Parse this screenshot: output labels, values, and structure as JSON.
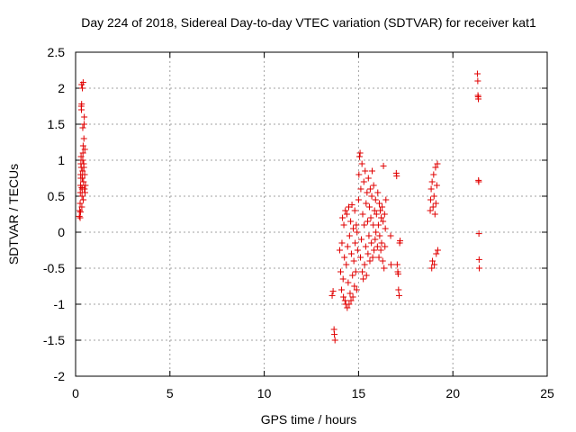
{
  "chart_data": {
    "type": "scatter",
    "title": "Day 224 of 2018, Sidereal Day-to-day VTEC variation (SDTVAR) for receiver kat1",
    "xlabel": "GPS time / hours",
    "ylabel": "SDTVAR / TECUs",
    "xlim": [
      0,
      25
    ],
    "ylim": [
      -2,
      2.5
    ],
    "xticks": [
      0,
      5,
      10,
      15,
      20,
      25
    ],
    "yticks": [
      -2,
      -1.5,
      -1,
      -0.5,
      0,
      0.5,
      1,
      1.5,
      2,
      2.5
    ],
    "grid": true,
    "marker": "+",
    "color": "#e00000",
    "series": [
      {
        "name": "kat1",
        "points": [
          [
            0.2,
            0.22
          ],
          [
            0.22,
            0.3
          ],
          [
            0.24,
            0.4
          ],
          [
            0.25,
            0.55
          ],
          [
            0.26,
            0.65
          ],
          [
            0.27,
            0.8
          ],
          [
            0.28,
            0.95
          ],
          [
            0.29,
            1.05
          ],
          [
            0.3,
            0.9
          ],
          [
            0.3,
            1.75
          ],
          [
            0.31,
            1.7
          ],
          [
            0.32,
            2.05
          ],
          [
            0.33,
            0.35
          ],
          [
            0.34,
            0.5
          ],
          [
            0.35,
            0.6
          ],
          [
            0.36,
            0.75
          ],
          [
            0.37,
            0.85
          ],
          [
            0.38,
            1.0
          ],
          [
            0.39,
            1.1
          ],
          [
            0.4,
            1.2
          ],
          [
            0.4,
            2.08
          ],
          [
            0.41,
            0.45
          ],
          [
            0.42,
            0.7
          ],
          [
            0.43,
            0.95
          ],
          [
            0.44,
            1.3
          ],
          [
            0.45,
            1.5
          ],
          [
            0.46,
            1.6
          ],
          [
            0.47,
            0.6
          ],
          [
            0.48,
            0.8
          ],
          [
            0.49,
            1.15
          ],
          [
            0.5,
            0.55
          ],
          [
            0.52,
            0.65
          ],
          [
            0.24,
            0.2
          ],
          [
            0.26,
            0.28
          ],
          [
            0.32,
            1.78
          ],
          [
            0.36,
            2.0
          ],
          [
            0.38,
            1.45
          ],
          [
            0.44,
            0.9
          ],
          [
            0.28,
            0.75
          ],
          [
            0.33,
            0.62
          ],
          [
            13.6,
            -0.88
          ],
          [
            13.65,
            -0.82
          ],
          [
            13.7,
            -1.35
          ],
          [
            13.72,
            -1.42
          ],
          [
            13.75,
            -1.5
          ],
          [
            14.0,
            -0.25
          ],
          [
            14.05,
            -0.55
          ],
          [
            14.1,
            -0.8
          ],
          [
            14.12,
            -0.15
          ],
          [
            14.15,
            0.2
          ],
          [
            14.18,
            -0.65
          ],
          [
            14.2,
            -0.9
          ],
          [
            14.22,
            0.1
          ],
          [
            14.25,
            -0.35
          ],
          [
            14.28,
            -0.95
          ],
          [
            14.3,
            0.3
          ],
          [
            14.32,
            -1.0
          ],
          [
            14.35,
            -0.45
          ],
          [
            14.38,
            0.25
          ],
          [
            14.4,
            -1.05
          ],
          [
            14.42,
            -0.2
          ],
          [
            14.45,
            -0.7
          ],
          [
            14.48,
            0.35
          ],
          [
            14.5,
            -1.0
          ],
          [
            14.52,
            -0.05
          ],
          [
            14.55,
            -0.85
          ],
          [
            14.58,
            0.15
          ],
          [
            14.6,
            -0.95
          ],
          [
            14.62,
            -0.3
          ],
          [
            14.65,
            0.38
          ],
          [
            14.68,
            -0.6
          ],
          [
            14.7,
            -0.9
          ],
          [
            14.72,
            0.05
          ],
          [
            14.75,
            -0.4
          ],
          [
            14.78,
            -0.75
          ],
          [
            14.8,
            0.3
          ],
          [
            14.82,
            -0.15
          ],
          [
            14.85,
            -0.55
          ],
          [
            14.88,
            0.1
          ],
          [
            14.9,
            -0.8
          ],
          [
            14.92,
            0.0
          ],
          [
            14.95,
            -0.25
          ],
          [
            15.0,
            0.45
          ],
          [
            15.02,
            0.8
          ],
          [
            15.05,
            1.05
          ],
          [
            15.08,
            1.1
          ],
          [
            15.1,
            -0.35
          ],
          [
            15.12,
            0.6
          ],
          [
            15.15,
            -0.1
          ],
          [
            15.18,
            0.95
          ],
          [
            15.2,
            -0.55
          ],
          [
            15.22,
            0.25
          ],
          [
            15.25,
            -0.65
          ],
          [
            15.28,
            0.7
          ],
          [
            15.3,
            0.1
          ],
          [
            15.32,
            -0.45
          ],
          [
            15.35,
            0.85
          ],
          [
            15.38,
            -0.2
          ],
          [
            15.4,
            0.4
          ],
          [
            15.42,
            -0.6
          ],
          [
            15.45,
            0.55
          ],
          [
            15.48,
            0.15
          ],
          [
            15.5,
            -0.3
          ],
          [
            15.52,
            0.75
          ],
          [
            15.55,
            -0.05
          ],
          [
            15.58,
            0.35
          ],
          [
            15.6,
            -0.4
          ],
          [
            15.62,
            0.6
          ],
          [
            15.65,
            0.2
          ],
          [
            15.68,
            -0.15
          ],
          [
            15.7,
            0.5
          ],
          [
            15.72,
            0.85
          ],
          [
            15.75,
            -0.35
          ],
          [
            15.78,
            0.1
          ],
          [
            15.8,
            0.65
          ],
          [
            15.82,
            -0.25
          ],
          [
            15.85,
            0.3
          ],
          [
            15.88,
            -0.1
          ],
          [
            15.9,
            0.45
          ],
          [
            15.92,
            0.0
          ],
          [
            15.95,
            0.25
          ],
          [
            16.0,
            -0.2
          ],
          [
            16.02,
            0.55
          ],
          [
            16.05,
            0.1
          ],
          [
            16.08,
            -0.35
          ],
          [
            16.1,
            0.4
          ],
          [
            16.12,
            -0.05
          ],
          [
            16.15,
            0.3
          ],
          [
            16.18,
            -0.25
          ],
          [
            16.2,
            0.2
          ],
          [
            16.22,
            -0.15
          ],
          [
            16.25,
            0.35
          ],
          [
            16.28,
            -0.4
          ],
          [
            16.3,
            0.15
          ],
          [
            16.32,
            0.92
          ],
          [
            16.35,
            -0.5
          ],
          [
            16.38,
            0.25
          ],
          [
            16.4,
            -0.2
          ],
          [
            16.42,
            0.05
          ],
          [
            16.45,
            0.45
          ],
          [
            16.7,
            -0.05
          ],
          [
            16.72,
            -0.45
          ],
          [
            17.0,
            0.82
          ],
          [
            17.02,
            0.78
          ],
          [
            17.05,
            -0.45
          ],
          [
            17.08,
            -0.55
          ],
          [
            17.1,
            -0.58
          ],
          [
            17.12,
            -0.8
          ],
          [
            17.15,
            -0.88
          ],
          [
            17.18,
            -0.15
          ],
          [
            17.2,
            -0.12
          ],
          [
            18.8,
            0.3
          ],
          [
            18.82,
            0.45
          ],
          [
            18.85,
            0.6
          ],
          [
            18.88,
            -0.5
          ],
          [
            18.9,
            0.7
          ],
          [
            18.92,
            -0.4
          ],
          [
            18.95,
            0.35
          ],
          [
            18.98,
            0.8
          ],
          [
            19.0,
            0.5
          ],
          [
            19.02,
            -0.45
          ],
          [
            19.05,
            0.25
          ],
          [
            19.08,
            0.9
          ],
          [
            19.1,
            0.4
          ],
          [
            19.12,
            -0.3
          ],
          [
            19.15,
            0.65
          ],
          [
            19.18,
            0.95
          ],
          [
            19.2,
            -0.25
          ],
          [
            21.3,
            2.2
          ],
          [
            21.32,
            2.1
          ],
          [
            21.33,
            1.9
          ],
          [
            21.34,
            1.88
          ],
          [
            21.35,
            1.85
          ],
          [
            21.36,
            0.72
          ],
          [
            21.37,
            0.7
          ],
          [
            21.38,
            -0.02
          ],
          [
            21.39,
            -0.38
          ],
          [
            21.4,
            -0.5
          ]
        ]
      }
    ]
  }
}
